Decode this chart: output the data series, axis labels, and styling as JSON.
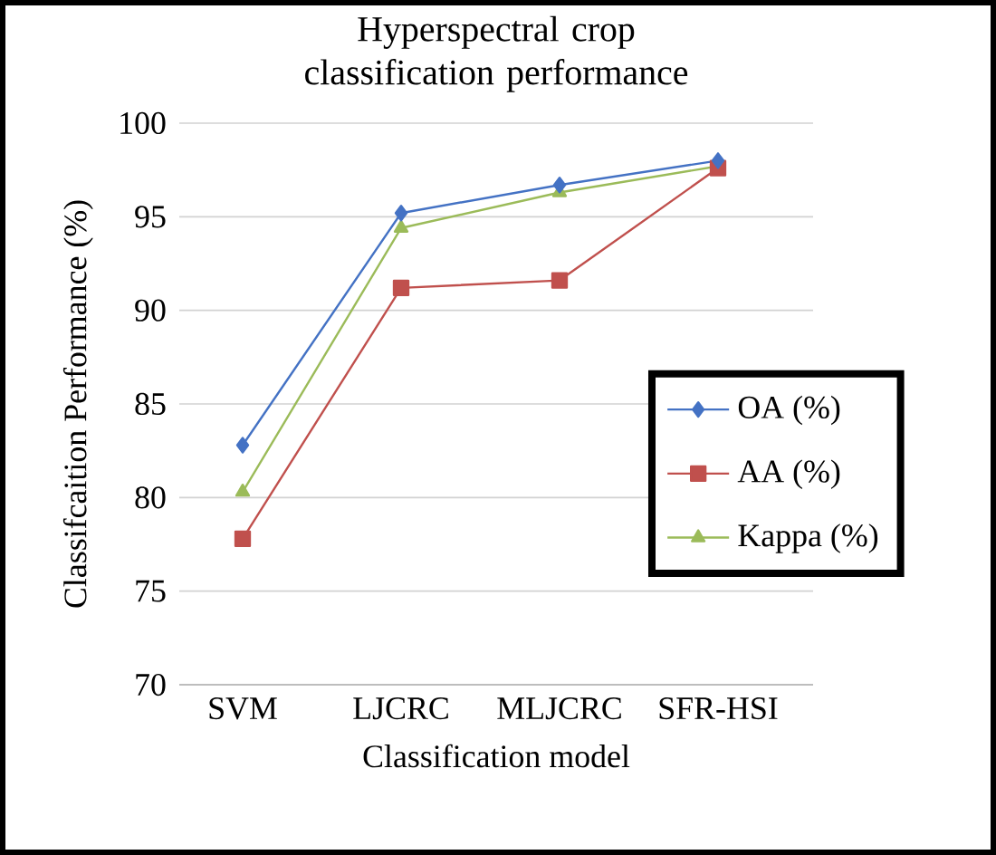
{
  "chart_data": {
    "type": "line",
    "title": "Hyperspectral crop classification performance",
    "xlabel": "Classification model",
    "ylabel": "Classifcaition Performance (%)",
    "categories": [
      "SVM",
      "LJCRC",
      "MLJCRC",
      "SFR-HSI"
    ],
    "series": [
      {
        "name": "OA (%)",
        "color": "#4472c4",
        "marker": "diamond",
        "values": [
          82.8,
          95.2,
          96.7,
          98.0
        ]
      },
      {
        "name": "AA (%)",
        "color": "#c0504d",
        "marker": "square",
        "values": [
          77.8,
          91.2,
          91.6,
          97.6
        ]
      },
      {
        "name": "Kappa (%)",
        "color": "#9bbb59",
        "marker": "triangle",
        "values": [
          80.3,
          94.4,
          96.3,
          97.7
        ]
      }
    ],
    "ylim": [
      70,
      100
    ],
    "yticks": [
      70,
      75,
      80,
      85,
      90,
      95,
      100
    ],
    "grid": "y",
    "legend": "right"
  }
}
